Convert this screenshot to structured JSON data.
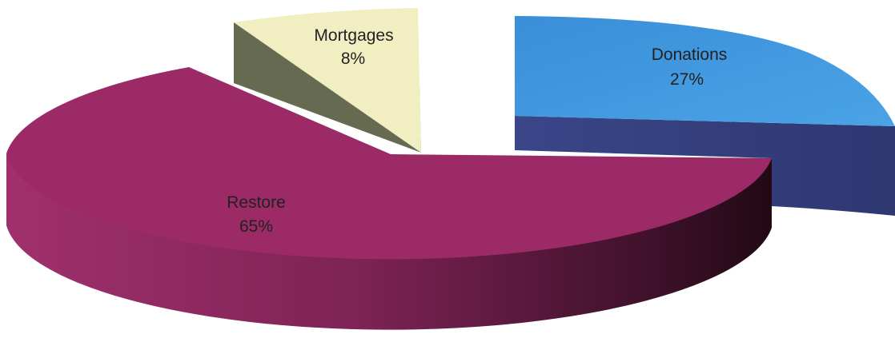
{
  "chart_data": {
    "type": "pie",
    "title": "",
    "three_d": true,
    "exploded": true,
    "slices": [
      {
        "label": "Restore",
        "value": 65,
        "value_label": "65%",
        "top_color": "#9B2A67",
        "side_color_light": "#8A2A5C",
        "side_color_dark": "#2A0E1D"
      },
      {
        "label": "Mortgages",
        "value": 8,
        "value_label": "8%",
        "top_color": "#F1EFC2",
        "side_color_light": "#7A7E64",
        "side_color_dark": "#5E624C"
      },
      {
        "label": "Donations",
        "value": 27,
        "value_label": "27%",
        "top_color": "#3E93DB",
        "side_color_light": "#3E4A8C",
        "side_color_dark": "#2F3873"
      }
    ]
  }
}
